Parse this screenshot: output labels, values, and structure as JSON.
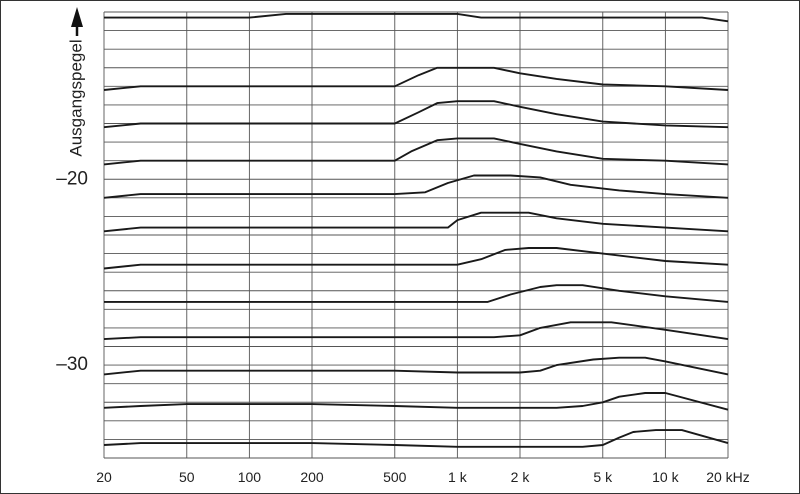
{
  "chart_data": {
    "type": "line",
    "xscale": "log",
    "xlim": [
      20,
      20000
    ],
    "xlabel": "",
    "x_unit": "kHz",
    "x_ticks": [
      {
        "value": 20,
        "label": "20"
      },
      {
        "value": 50,
        "label": "50"
      },
      {
        "value": 100,
        "label": "100"
      },
      {
        "value": 200,
        "label": "200"
      },
      {
        "value": 500,
        "label": "500"
      },
      {
        "value": 1000,
        "label": "1 k"
      },
      {
        "value": 2000,
        "label": "2 k"
      },
      {
        "value": 5000,
        "label": "5 k"
      },
      {
        "value": 10000,
        "label": "10 k"
      },
      {
        "value": 20000,
        "label": "20 kHz"
      }
    ],
    "ylabel": "Ausgangspegel",
    "ylim": [
      -35.0,
      -11.0
    ],
    "y_ticks": [
      {
        "value": -20,
        "label": "–20"
      },
      {
        "value": -30,
        "label": "–30"
      }
    ],
    "grid": true,
    "series": [
      {
        "x": [
          20,
          100,
          150,
          200,
          500,
          1000,
          1300,
          5000,
          15000,
          20000
        ],
        "y": [
          -11.3,
          -11.3,
          -11.1,
          -11.1,
          -11.1,
          -11.1,
          -11.3,
          -11.3,
          -11.3,
          -11.5
        ]
      },
      {
        "x": [
          20,
          30,
          200,
          500,
          650,
          800,
          1000,
          1500,
          2000,
          3000,
          5000,
          10000,
          20000
        ],
        "y": [
          -15.2,
          -15.0,
          -15.0,
          -15.0,
          -14.4,
          -14.0,
          -14.0,
          -14.0,
          -14.3,
          -14.6,
          -14.9,
          -15.0,
          -15.2
        ]
      },
      {
        "x": [
          20,
          30,
          200,
          500,
          650,
          800,
          1000,
          1500,
          2000,
          3000,
          5000,
          10000,
          20000
        ],
        "y": [
          -17.2,
          -17.0,
          -17.0,
          -17.0,
          -16.4,
          -15.9,
          -15.8,
          -15.8,
          -16.1,
          -16.5,
          -16.9,
          -17.1,
          -17.2
        ]
      },
      {
        "x": [
          20,
          30,
          200,
          500,
          600,
          800,
          1000,
          1500,
          2000,
          3000,
          5000,
          10000,
          20000
        ],
        "y": [
          -19.2,
          -19.0,
          -19.0,
          -19.0,
          -18.5,
          -17.9,
          -17.8,
          -17.8,
          -18.1,
          -18.5,
          -18.9,
          -19.0,
          -19.2
        ]
      },
      {
        "x": [
          20,
          30,
          200,
          500,
          700,
          900,
          1200,
          1800,
          2500,
          3500,
          6000,
          10000,
          20000
        ],
        "y": [
          -21.0,
          -20.8,
          -20.8,
          -20.8,
          -20.7,
          -20.2,
          -19.8,
          -19.8,
          -19.9,
          -20.3,
          -20.6,
          -20.8,
          -21.0
        ]
      },
      {
        "x": [
          20,
          30,
          200,
          500,
          900,
          1000,
          1300,
          1800,
          2200,
          3000,
          5000,
          10000,
          20000
        ],
        "y": [
          -22.8,
          -22.6,
          -22.6,
          -22.6,
          -22.6,
          -22.2,
          -21.8,
          -21.8,
          -21.8,
          -22.1,
          -22.4,
          -22.6,
          -22.8
        ]
      },
      {
        "x": [
          20,
          30,
          200,
          500,
          1000,
          1300,
          1700,
          2200,
          3000,
          5000,
          10000,
          20000
        ],
        "y": [
          -24.8,
          -24.6,
          -24.6,
          -24.6,
          -24.6,
          -24.3,
          -23.8,
          -23.7,
          -23.7,
          -24.0,
          -24.4,
          -24.6
        ]
      },
      {
        "x": [
          20,
          30,
          200,
          500,
          1000,
          1400,
          1800,
          2500,
          3000,
          4000,
          6000,
          10000,
          20000
        ],
        "y": [
          -26.6,
          -26.6,
          -26.6,
          -26.6,
          -26.6,
          -26.6,
          -26.2,
          -25.8,
          -25.7,
          -25.7,
          -26.0,
          -26.3,
          -26.6
        ]
      },
      {
        "x": [
          20,
          30,
          200,
          500,
          1000,
          1500,
          2000,
          2500,
          3500,
          4500,
          5500,
          10000,
          20000
        ],
        "y": [
          -28.6,
          -28.5,
          -28.5,
          -28.5,
          -28.5,
          -28.5,
          -28.4,
          -28.0,
          -27.7,
          -27.7,
          -27.7,
          -28.1,
          -28.6
        ]
      },
      {
        "x": [
          20,
          30,
          50,
          200,
          500,
          1000,
          2000,
          2500,
          3000,
          4500,
          6000,
          8000,
          10000,
          20000
        ],
        "y": [
          -30.5,
          -30.3,
          -30.3,
          -30.3,
          -30.3,
          -30.4,
          -30.4,
          -30.3,
          -30.0,
          -29.7,
          -29.6,
          -29.6,
          -29.8,
          -30.5
        ]
      },
      {
        "x": [
          20,
          30,
          50,
          200,
          500,
          1000,
          2000,
          3000,
          4000,
          5000,
          6000,
          8000,
          10000,
          20000
        ],
        "y": [
          -32.3,
          -32.2,
          -32.1,
          -32.1,
          -32.2,
          -32.3,
          -32.3,
          -32.3,
          -32.2,
          -32.0,
          -31.7,
          -31.5,
          -31.5,
          -32.4
        ]
      },
      {
        "x": [
          20,
          30,
          200,
          500,
          1000,
          2000,
          3000,
          4000,
          5000,
          6000,
          7000,
          9000,
          12000,
          20000
        ],
        "y": [
          -34.3,
          -34.2,
          -34.2,
          -34.3,
          -34.4,
          -34.4,
          -34.4,
          -34.4,
          -34.3,
          -33.9,
          -33.6,
          -33.5,
          -33.5,
          -34.2
        ]
      }
    ]
  }
}
